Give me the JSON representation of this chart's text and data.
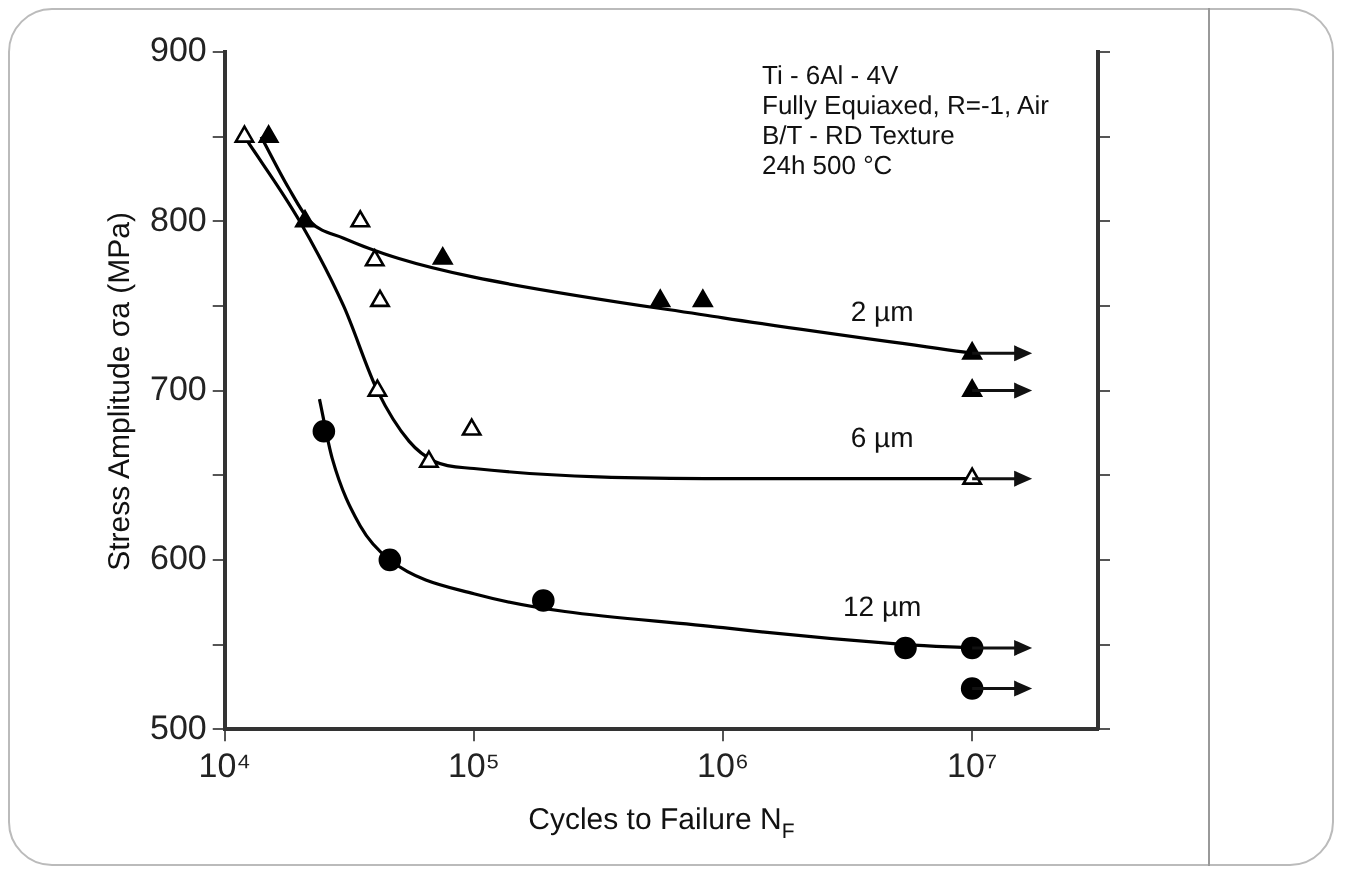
{
  "chart_data": {
    "type": "scatter",
    "xlabel": "Cycles to Failure N$_{F}$",
    "ylabel": "Stress Amplitude σa (MPa)",
    "log": "x",
    "grid": false,
    "legend": false,
    "xlim": [
      10000,
      32000000
    ],
    "xticks": [
      {
        "value": 10000,
        "label": "10⁴"
      },
      {
        "value": 100000,
        "label": "10⁵"
      },
      {
        "value": 1000000,
        "label": "10⁶"
      },
      {
        "value": 10000000,
        "label": "10⁷"
      }
    ],
    "ylim": [
      500,
      900
    ],
    "yticks": [
      500,
      {
        "value": 550,
        "label": null
      },
      600,
      {
        "value": 650,
        "label": null
      },
      700,
      {
        "value": 750,
        "label": null
      },
      800,
      {
        "value": 850,
        "label": null
      },
      900
    ],
    "annotations": [
      "Ti - 6Al - 4V",
      "Fully Equiaxed, R=-1, Air",
      "B/T - RD Texture",
      "24h 500 °C"
    ],
    "series": [
      {
        "type": "scatter",
        "marker": "triangle",
        "color": "#000000",
        "x": [
          15000,
          21000,
          75000,
          560000,
          830000,
          10000000,
          10000000
        ],
        "values": [
          850,
          800,
          778,
          753,
          753,
          722,
          700
        ]
      },
      {
        "type": "scatter",
        "marker": "triangle-open",
        "color": "#000000",
        "x": [
          12000,
          35000,
          40000,
          42000,
          41000,
          98000,
          66000,
          10000000
        ],
        "values": [
          850,
          800,
          777,
          753,
          700,
          677,
          658,
          648
        ]
      },
      {
        "type": "scatter",
        "marker": "circle",
        "color": "#000000",
        "x": [
          25000,
          46000,
          190000,
          5400000,
          10000000,
          10000000
        ],
        "values": [
          676,
          600,
          576,
          548,
          548,
          524
        ]
      },
      {
        "type": "line",
        "name": "2 µm",
        "marker": "none",
        "color": "#000000",
        "x": [
          14000,
          18000,
          22000,
          30000,
          50000,
          100000,
          1000000,
          10000000
        ],
        "values": [
          850,
          820,
          800,
          790,
          778,
          767,
          743,
          722
        ]
      },
      {
        "type": "line",
        "name": "6 µm",
        "marker": "none",
        "color": "#000000",
        "x": [
          12000,
          20000,
          30000,
          41000,
          55000,
          70000,
          100000,
          1000000,
          10000000
        ],
        "values": [
          850,
          800,
          750,
          700,
          670,
          658,
          654,
          648,
          648
        ]
      },
      {
        "type": "line",
        "name": "12 µm",
        "marker": "none",
        "color": "#000000",
        "x": [
          24000,
          27000,
          35000,
          46000,
          100000,
          1000000,
          5400000,
          10000000
        ],
        "values": [
          695,
          660,
          620,
          600,
          580,
          560,
          550,
          548
        ]
      }
    ]
  }
}
